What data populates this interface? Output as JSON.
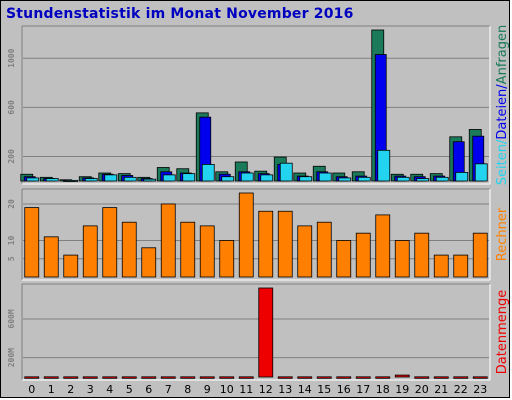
{
  "title": "Stundenstatistik im Monat November 2016",
  "colors": {
    "anfragen": "#1b7a5a",
    "dateien": "#0000ee",
    "seiten": "#22d4f0",
    "rechner": "#ff8000",
    "datenmenge": "#ee0000",
    "panel": "#c0c0c0"
  },
  "chart_data": {
    "type": "bar",
    "categories": [
      "0",
      "1",
      "2",
      "3",
      "4",
      "5",
      "6",
      "7",
      "8",
      "9",
      "10",
      "11",
      "12",
      "13",
      "14",
      "15",
      "16",
      "17",
      "18",
      "19",
      "20",
      "21",
      "22",
      "23"
    ],
    "panels": [
      {
        "id": "requests",
        "ylabel_parts": [
          {
            "text": "Seiten",
            "color_key": "seiten"
          },
          {
            "text": "/",
            "color_key": "seiten"
          },
          {
            "text": "Dateien",
            "color_key": "dateien"
          },
          {
            "text": "/",
            "color_key": "dateien"
          },
          {
            "text": "Anfragen",
            "color_key": "anfragen"
          }
        ],
        "yticks": [
          200,
          600,
          1000
        ],
        "ylim": [
          0,
          1230
        ],
        "series": [
          {
            "name": "Anfragen",
            "color_key": "anfragen",
            "values": [
              55,
              30,
              10,
              35,
              65,
              60,
              30,
              110,
              100,
              555,
              75,
              155,
              80,
              195,
              65,
              120,
              65,
              75,
              1230,
              55,
              55,
              60,
              360,
              420
            ]
          },
          {
            "name": "Dateien",
            "color_key": "dateien",
            "values": [
              35,
              20,
              5,
              25,
              55,
              45,
              20,
              75,
              65,
              520,
              55,
              75,
              60,
              135,
              40,
              75,
              35,
              40,
              1030,
              40,
              35,
              40,
              320,
              365
            ]
          },
          {
            "name": "Seiten",
            "color_key": "seiten",
            "values": [
              25,
              20,
              5,
              20,
              50,
              30,
              15,
              50,
              60,
              135,
              35,
              65,
              50,
              145,
              35,
              65,
              25,
              30,
              250,
              30,
              20,
              30,
              70,
              140
            ]
          }
        ]
      },
      {
        "id": "hosts",
        "ylabel_parts": [
          {
            "text": "Rechner",
            "color_key": "rechner"
          }
        ],
        "yticks": [
          5,
          10,
          20
        ],
        "ylim": [
          0,
          23
        ],
        "series": [
          {
            "name": "Rechner",
            "color_key": "rechner",
            "values": [
              19,
              11,
              6,
              14,
              19,
              15,
              8,
              20,
              15,
              14,
              10,
              23,
              18,
              18,
              14,
              15,
              10,
              12,
              17,
              10,
              12,
              6,
              6,
              12
            ]
          }
        ]
      },
      {
        "id": "volume",
        "ylabel_parts": [
          {
            "text": "Datenmenge",
            "color_key": "datenmenge"
          }
        ],
        "yticks": [
          "200M",
          "600M"
        ],
        "ytick_values": [
          200,
          600
        ],
        "ylim": [
          0,
          920
        ],
        "series": [
          {
            "name": "Datenmenge",
            "color_key": "datenmenge",
            "values": [
              2,
              2,
              2,
              2,
              2,
              2,
              2,
              2,
              2,
              2,
              2,
              2,
              920,
              2,
              2,
              2,
              2,
              2,
              2,
              20,
              2,
              2,
              2,
              2
            ]
          }
        ]
      }
    ]
  }
}
